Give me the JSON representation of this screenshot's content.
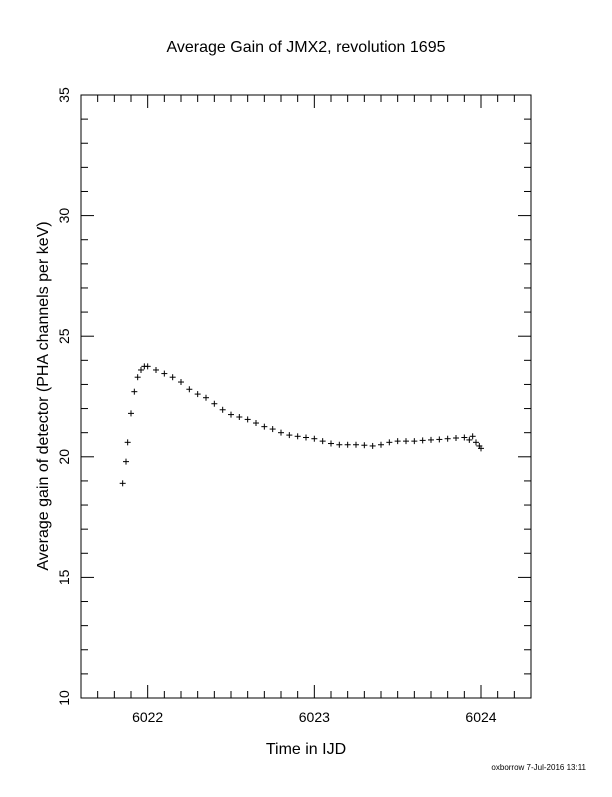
{
  "chart_data": {
    "type": "scatter",
    "title": "Average Gain of JMX2, revolution 1695",
    "xlabel": "Time in IJD",
    "ylabel": "Average gain of detector (PHA channels per keV)",
    "xlim": [
      6021.6,
      6024.3
    ],
    "ylim": [
      10,
      35
    ],
    "xticks": [
      6022,
      6023,
      6024
    ],
    "yticks": [
      10,
      15,
      20,
      25,
      30,
      35
    ],
    "x_minor_step": 0.1,
    "y_minor_step": 1,
    "marker": "plus",
    "color": "#000000",
    "footer": "oxborrow  7-Jul-2016 13:11",
    "grid": false,
    "series": [
      {
        "x": [
          6021.85,
          6021.87,
          6021.88,
          6021.9,
          6021.92,
          6021.94,
          6021.96,
          6021.98,
          6022.0,
          6022.05,
          6022.1,
          6022.15,
          6022.2,
          6022.25,
          6022.3,
          6022.35,
          6022.4,
          6022.45,
          6022.5,
          6022.55,
          6022.6,
          6022.65,
          6022.7,
          6022.75,
          6022.8,
          6022.85,
          6022.9,
          6022.95,
          6023.0,
          6023.05,
          6023.1,
          6023.15,
          6023.2,
          6023.25,
          6023.3,
          6023.35,
          6023.4,
          6023.45,
          6023.5,
          6023.55,
          6023.6,
          6023.65,
          6023.7,
          6023.75,
          6023.8,
          6023.85,
          6023.9,
          6023.93,
          6023.95,
          6023.97,
          6023.99,
          6024.0
        ],
        "y": [
          18.9,
          19.8,
          20.6,
          21.8,
          22.7,
          23.3,
          23.6,
          23.75,
          23.75,
          23.6,
          23.45,
          23.3,
          23.1,
          22.8,
          22.6,
          22.45,
          22.2,
          21.95,
          21.75,
          21.65,
          21.55,
          21.4,
          21.25,
          21.15,
          21.0,
          20.9,
          20.85,
          20.8,
          20.75,
          20.65,
          20.55,
          20.5,
          20.5,
          20.5,
          20.48,
          20.45,
          20.5,
          20.6,
          20.65,
          20.65,
          20.65,
          20.68,
          20.7,
          20.72,
          20.75,
          20.78,
          20.8,
          20.7,
          20.85,
          20.6,
          20.45,
          20.35
        ]
      }
    ]
  }
}
